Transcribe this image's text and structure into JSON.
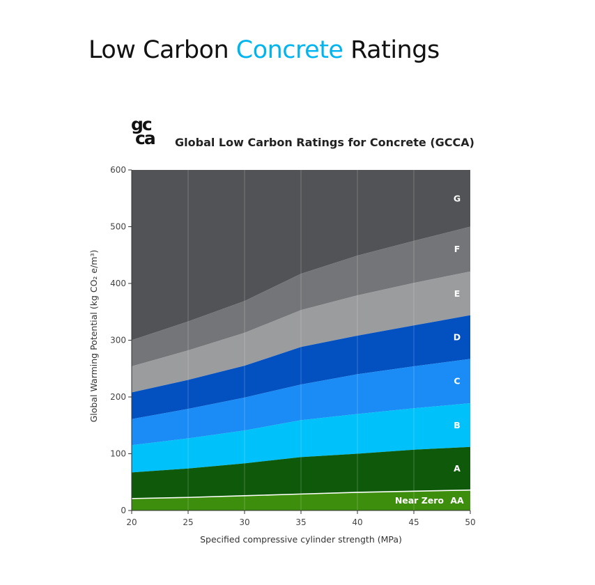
{
  "page": {
    "title_part1": "Low Carbon ",
    "title_accent": "Concrete",
    "title_part2": " Ratings",
    "accent_color": "#00b4f0"
  },
  "logo": {
    "line1": "gc",
    "line2": "ca"
  },
  "chart_data": {
    "type": "area",
    "title": "Global Low Carbon Ratings for Concrete (GCCA)",
    "xlabel": "Specified compressive cylinder strength (MPa)",
    "ylabel": "Global Warming Potential (kg CO₂ e/m³)",
    "xlim": [
      20,
      50
    ],
    "ylim": [
      0,
      600
    ],
    "x": [
      20,
      25,
      30,
      35,
      40,
      45,
      50
    ],
    "x_ticks": [
      "20",
      "25",
      "30",
      "35",
      "40",
      "45",
      "50"
    ],
    "y_ticks": [
      "0",
      "100",
      "200",
      "300",
      "400",
      "500",
      "600"
    ],
    "grid": true,
    "boundaries": [
      {
        "name": "Near Zero / AA",
        "values": [
          21,
          23,
          26,
          29,
          32,
          34,
          36
        ]
      },
      {
        "name": "AA / A",
        "values": [
          67,
          74,
          83,
          94,
          100,
          107,
          112
        ]
      },
      {
        "name": "A / B",
        "values": [
          115,
          127,
          141,
          159,
          170,
          180,
          189
        ]
      },
      {
        "name": "B / C",
        "values": [
          161,
          179,
          199,
          222,
          240,
          254,
          267
        ]
      },
      {
        "name": "C / D",
        "values": [
          208,
          230,
          255,
          288,
          308,
          326,
          344
        ]
      },
      {
        "name": "D / E",
        "values": [
          254,
          282,
          313,
          353,
          379,
          401,
          421
        ]
      },
      {
        "name": "E / F",
        "values": [
          300,
          333,
          369,
          417,
          449,
          475,
          500
        ]
      }
    ],
    "bands": [
      {
        "label": "G",
        "color": "#525356"
      },
      {
        "label": "F",
        "color": "#747578"
      },
      {
        "label": "E",
        "color": "#9b9c9e"
      },
      {
        "label": "D",
        "color": "#0350c0"
      },
      {
        "label": "C",
        "color": "#1b8cf5"
      },
      {
        "label": "B",
        "color": "#00c1fa"
      },
      {
        "label": "A",
        "color": "#0f5a0a"
      },
      {
        "label": "AA",
        "color": "#3d8e0c"
      }
    ],
    "near_zero_label": "Near Zero"
  }
}
